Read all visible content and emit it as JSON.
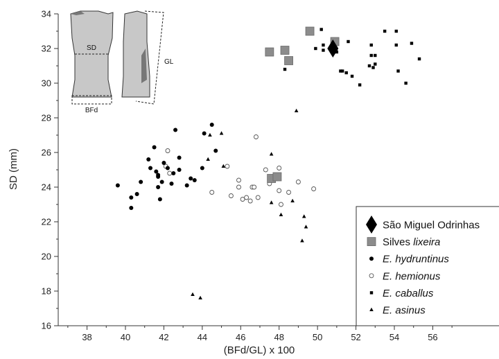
{
  "chart_data": {
    "type": "scatter",
    "title": "",
    "xlabel": "(BFd/GL) x 100",
    "ylabel": "SD (mm)",
    "xlim": [
      36.5,
      57.5
    ],
    "ylim": [
      16,
      34
    ],
    "xticks": [
      38,
      40,
      42,
      44,
      46,
      48,
      50,
      52,
      54,
      56
    ],
    "yticks": [
      16,
      18,
      20,
      22,
      24,
      26,
      28,
      30,
      32,
      34
    ],
    "grid": false,
    "legend_position": "bottom-right",
    "inset_labels": {
      "sd": "SD",
      "bfd": "BFd",
      "gl": "GL"
    },
    "series": [
      {
        "name": "São Miguel Odrinhas",
        "italic_part": "",
        "marker": "diamond",
        "points": [
          [
            50.8,
            32.0
          ]
        ]
      },
      {
        "name": "Silves ",
        "italic_part": "lixeira",
        "marker": "square",
        "points": [
          [
            47.5,
            31.8
          ],
          [
            48.3,
            31.9
          ],
          [
            48.5,
            31.3
          ],
          [
            49.6,
            33.0
          ],
          [
            50.9,
            32.4
          ],
          [
            47.6,
            24.5
          ],
          [
            47.9,
            24.6
          ]
        ]
      },
      {
        "name": "",
        "italic_part": "E. hydruntinus",
        "marker": "filled-circle",
        "points": [
          [
            39.6,
            24.1
          ],
          [
            40.3,
            23.4
          ],
          [
            40.3,
            22.8
          ],
          [
            40.6,
            23.6
          ],
          [
            40.8,
            24.3
          ],
          [
            41.2,
            25.6
          ],
          [
            41.3,
            25.1
          ],
          [
            41.5,
            26.3
          ],
          [
            41.6,
            24.9
          ],
          [
            41.7,
            24.7
          ],
          [
            41.7,
            24.6
          ],
          [
            41.7,
            24.0
          ],
          [
            41.8,
            23.3
          ],
          [
            41.9,
            24.3
          ],
          [
            42.0,
            25.4
          ],
          [
            42.2,
            25.1
          ],
          [
            42.4,
            24.2
          ],
          [
            42.5,
            24.8
          ],
          [
            42.6,
            27.3
          ],
          [
            42.8,
            25.0
          ],
          [
            42.8,
            25.7
          ],
          [
            43.2,
            24.1
          ],
          [
            43.4,
            24.5
          ],
          [
            43.6,
            24.4
          ],
          [
            44.0,
            25.1
          ],
          [
            44.1,
            27.1
          ],
          [
            44.5,
            27.6
          ],
          [
            44.7,
            26.1
          ]
        ]
      },
      {
        "name": "",
        "italic_part": "E. hemionus",
        "marker": "open-circle",
        "points": [
          [
            42.1,
            25.2
          ],
          [
            42.2,
            26.1
          ],
          [
            42.3,
            24.8
          ],
          [
            44.5,
            23.7
          ],
          [
            45.3,
            25.2
          ],
          [
            45.5,
            23.5
          ],
          [
            45.9,
            24.4
          ],
          [
            45.9,
            24.0
          ],
          [
            46.1,
            23.3
          ],
          [
            46.3,
            23.4
          ],
          [
            46.5,
            23.2
          ],
          [
            46.6,
            24.0
          ],
          [
            46.7,
            24.0
          ],
          [
            46.8,
            26.9
          ],
          [
            46.9,
            23.4
          ],
          [
            47.3,
            25.0
          ],
          [
            47.5,
            24.2
          ],
          [
            47.7,
            24.4
          ],
          [
            48.0,
            25.1
          ],
          [
            48.0,
            23.8
          ],
          [
            48.1,
            23.0
          ],
          [
            48.5,
            23.7
          ],
          [
            49.0,
            24.3
          ],
          [
            49.8,
            23.9
          ]
        ]
      },
      {
        "name": "",
        "italic_part": "E. caballus",
        "marker": "filled-square",
        "points": [
          [
            48.3,
            30.8
          ],
          [
            49.9,
            32.0
          ],
          [
            50.2,
            33.1
          ],
          [
            50.3,
            32.2
          ],
          [
            50.3,
            31.9
          ],
          [
            51.0,
            31.8
          ],
          [
            51.2,
            30.7
          ],
          [
            51.3,
            30.7
          ],
          [
            51.5,
            30.6
          ],
          [
            51.6,
            32.4
          ],
          [
            51.8,
            30.4
          ],
          [
            52.2,
            29.9
          ],
          [
            52.7,
            31.0
          ],
          [
            52.8,
            31.6
          ],
          [
            52.8,
            32.2
          ],
          [
            52.9,
            30.9
          ],
          [
            53.0,
            31.1
          ],
          [
            53.0,
            31.6
          ],
          [
            53.5,
            33.0
          ],
          [
            54.1,
            33.0
          ],
          [
            54.1,
            32.2
          ],
          [
            54.2,
            30.7
          ],
          [
            54.6,
            30.0
          ],
          [
            54.9,
            32.3
          ],
          [
            55.3,
            31.4
          ]
        ]
      },
      {
        "name": "",
        "italic_part": "E. asinus",
        "marker": "triangle",
        "points": [
          [
            43.5,
            17.8
          ],
          [
            43.9,
            17.6
          ],
          [
            44.3,
            25.6
          ],
          [
            44.4,
            27.0
          ],
          [
            45.0,
            27.1
          ],
          [
            45.1,
            25.2
          ],
          [
            47.6,
            25.9
          ],
          [
            47.6,
            23.1
          ],
          [
            48.1,
            22.4
          ],
          [
            48.7,
            23.2
          ],
          [
            48.9,
            28.4
          ],
          [
            49.2,
            20.9
          ],
          [
            49.3,
            22.3
          ],
          [
            49.4,
            21.7
          ]
        ]
      }
    ]
  }
}
